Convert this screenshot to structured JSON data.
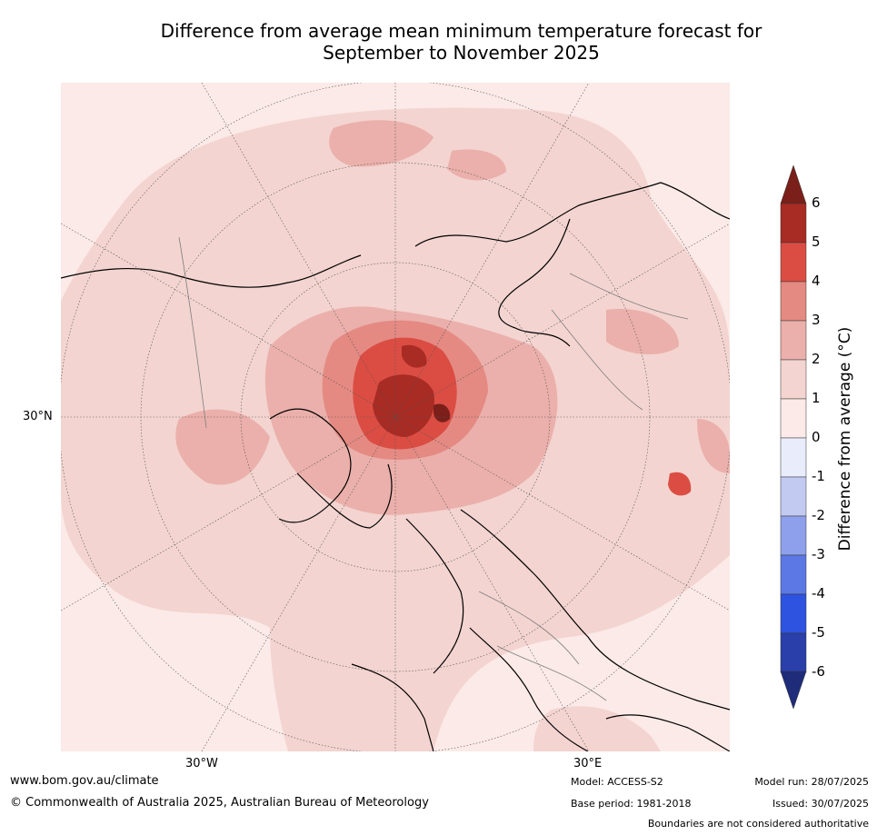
{
  "title_line1": "Difference from average mean minimum temperature forecast for",
  "title_line2": "September to November 2025",
  "map": {
    "projection": "north polar stereographic",
    "lat_labels": [
      "30°N"
    ],
    "lon_labels": [
      "30°W",
      "30°E"
    ],
    "region": "Northern Hemisphere (Arctic, Europe, North America)",
    "colors": {
      "ocean_base": "#fbeae7",
      "band_1_2": "#f3d4d0",
      "band_2_3": "#ebb0ab",
      "band_3_4": "#e48a83",
      "band_4_5": "#db4d43",
      "band_5_6": "#a82b24",
      "band_above_6": "#7a1f1a",
      "band_neg1_0": "#e8ecfb"
    }
  },
  "colorbar": {
    "label": "Difference from average (°C)",
    "ticks": [
      "6",
      "5",
      "4",
      "3",
      "2",
      "1",
      "0",
      "-1",
      "-2",
      "-3",
      "-4",
      "-5",
      "-6"
    ],
    "colors": [
      "#a82b24",
      "#db4d43",
      "#e48a83",
      "#ebb0ab",
      "#f3d4d0",
      "#fbeae7",
      "#e8ecfb",
      "#c2caf2",
      "#8ea0ec",
      "#5c78e4",
      "#2e53e0",
      "#2a3faa"
    ],
    "top_arrow_color": "#7a1f1a",
    "bottom_arrow_color": "#1f2c7a"
  },
  "footer": {
    "website": "www.bom.gov.au/climate",
    "copyright": "© Commonwealth of Australia 2025, Australian Bureau of Meteorology",
    "model": "Model: ACCESS-S2",
    "base_period": "Base period: 1981-2018",
    "model_run": "Model run: 28/07/2025",
    "issued": "Issued: 30/07/2025",
    "boundaries_note": "Boundaries are not considered authoritative"
  }
}
